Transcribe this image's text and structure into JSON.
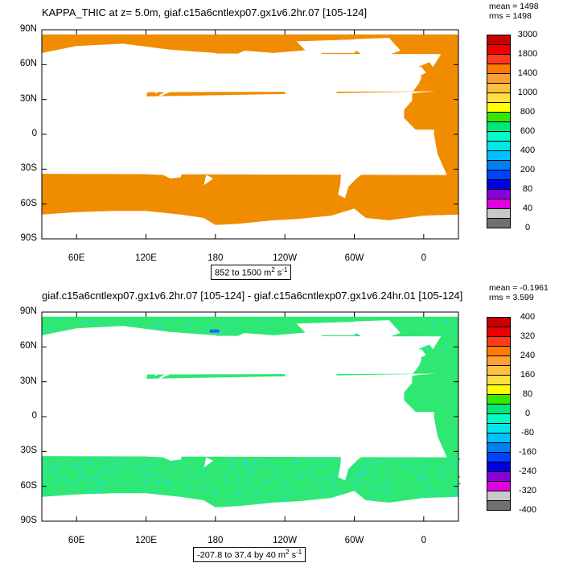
{
  "colors": {
    "land": "#ffffff",
    "panel1_fill": "#f08c00",
    "panel2_fill": "#2ee872",
    "panel2_noise": "#26e0d0",
    "panel2_spot": "#2a63e6"
  },
  "chart_data": [
    {
      "type": "heatmap",
      "title": "KAPPA_THIC at z=    5.0m, giaf.c15a6cntlexp07.gx1v6.2hr.07 [105-124]",
      "stats": {
        "mean": "mean = 1498",
        "rms": "rms = 1498"
      },
      "range_label": "852 to 1500 m",
      "units_sup1": "2",
      "units_mid": " s",
      "units_sup2": "-1",
      "y_ticks": [
        "90N",
        "60N",
        "30N",
        "0",
        "30S",
        "60S",
        "90S"
      ],
      "x_ticks": [
        "60E",
        "120E",
        "180",
        "120W",
        "60W",
        "0"
      ],
      "colorbar": {
        "labels": [
          "3000",
          "1800",
          "1400",
          "1000",
          "800",
          "600",
          "400",
          "200",
          "80",
          "40",
          "0"
        ],
        "colors": [
          "#c80000",
          "#ee0000",
          "#ff3a1a",
          "#ff7a00",
          "#ff9f33",
          "#ffbf40",
          "#ffe040",
          "#ffff00",
          "#36e800",
          "#00e87a",
          "#00fdc8",
          "#00e8e8",
          "#00c0ff",
          "#0080f0",
          "#0040ff",
          "#0000e0",
          "#8a00d8",
          "#e000e0",
          "#c8c8c8",
          "#707070"
        ]
      }
    },
    {
      "type": "heatmap",
      "title": "giaf.c15a6cntlexp07.gx1v6.2hr.07 [105-124] - giaf.c15a6cntlexp07.gx1v6.24hr.01 [105-124]",
      "stats": {
        "mean": "mean = -0.1961",
        "rms": "rms = 3.599"
      },
      "range_label": "-207.8 to 37.4 by 40 m",
      "units_sup1": "2",
      "units_mid": " s",
      "units_sup2": "-1",
      "y_ticks": [
        "90N",
        "60N",
        "30N",
        "0",
        "30S",
        "60S",
        "90S"
      ],
      "x_ticks": [
        "60E",
        "120E",
        "180",
        "120W",
        "60W",
        "0"
      ],
      "colorbar": {
        "labels": [
          "400",
          "320",
          "240",
          "160",
          "80",
          "0",
          "-80",
          "-160",
          "-240",
          "-320",
          "-400"
        ],
        "colors": [
          "#c80000",
          "#ee0000",
          "#ff3a1a",
          "#ff7a00",
          "#ff9f33",
          "#ffbf40",
          "#ffe040",
          "#ffff00",
          "#36e800",
          "#00e87a",
          "#00fdc8",
          "#00e8e8",
          "#00c0ff",
          "#0080f0",
          "#0040ff",
          "#0000e0",
          "#8a00d8",
          "#e000e0",
          "#c8c8c8",
          "#707070"
        ]
      }
    }
  ]
}
